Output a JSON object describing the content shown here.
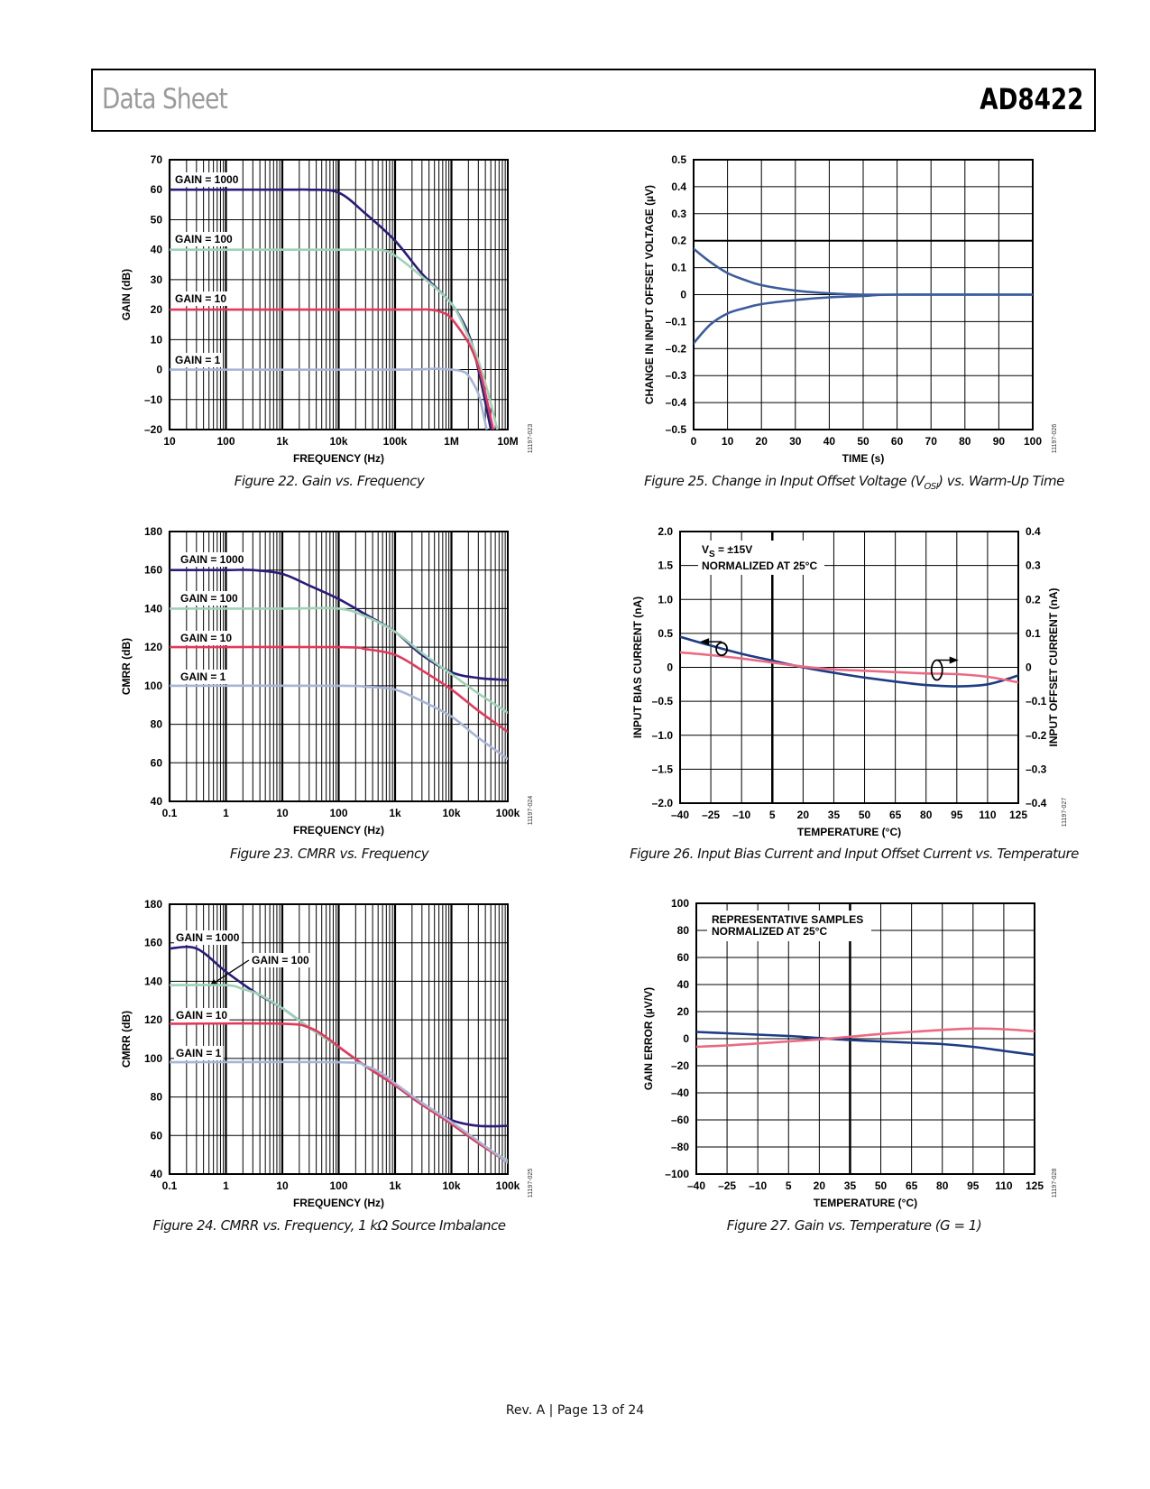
{
  "header": {
    "left": "Data Sheet",
    "right": "AD8422"
  },
  "footer": "Rev. A | Page 13 of 24",
  "colors": {
    "gain_1000": "#2b1b7a",
    "gain_100": "#9ed2b6",
    "gain_10": "#e2395a",
    "gain_1": "#a6b4d6",
    "warmup": "#3d5c9c",
    "navy": "#1d3c84",
    "pink": "#ea6a84"
  },
  "chart_data": [
    {
      "figure": "22",
      "caption": {
        "text": "Figure 22. Gain vs. Frequency"
      },
      "side_id": "11197-023",
      "type": "line",
      "xscale": "log",
      "xlim": [
        10,
        10000000
      ],
      "xticks": [
        10,
        100,
        1000,
        10000,
        100000,
        1000000,
        10000000
      ],
      "xtick_labels": [
        "10",
        "100",
        "1k",
        "10k",
        "100k",
        "1M",
        "10M"
      ],
      "ylim": [
        -20,
        70
      ],
      "yticks": [
        70,
        60,
        50,
        40,
        30,
        20,
        10,
        0,
        -10,
        -20
      ],
      "ytick_labels": [
        "70",
        "60",
        "50",
        "40",
        "30",
        "20",
        "10",
        "0",
        "–10",
        "–20"
      ],
      "xlabel": "FREQUENCY (Hz)",
      "ylabel": "GAIN (dB)",
      "grid": true,
      "series": [
        {
          "name": "GAIN = 1000",
          "color": "#2b1b7a",
          "x": [
            10,
            1000,
            3000,
            10000,
            30000,
            100000,
            300000,
            1000000,
            2000000,
            3000000,
            5000000
          ],
          "y": [
            60,
            60,
            60,
            59,
            52,
            43,
            32,
            22,
            12,
            0,
            -20
          ]
        },
        {
          "name": "GAIN = 100",
          "color": "#9ed2b6",
          "x": [
            10,
            10000,
            50000,
            100000,
            300000,
            1000000,
            2000000,
            3000000,
            4500000,
            6500000
          ],
          "y": [
            40,
            40,
            40,
            38,
            31,
            22,
            11,
            3,
            -8,
            -20
          ]
        },
        {
          "name": "GAIN = 10",
          "color": "#e2395a",
          "x": [
            10,
            100000,
            400000,
            700000,
            1000000,
            2000000,
            3000000,
            4000000,
            5500000
          ],
          "y": [
            20,
            20,
            20,
            19,
            17,
            9,
            1,
            -8,
            -20
          ]
        },
        {
          "name": "GAIN = 1",
          "color": "#a6b4d6",
          "x": [
            10,
            100000,
            500000,
            1000000,
            1500000,
            2000000,
            3000000,
            3600000,
            4200000
          ],
          "y": [
            0,
            0,
            0.3,
            0,
            -0.5,
            -2,
            -8,
            -14,
            -20
          ]
        }
      ]
    },
    {
      "figure": "25",
      "caption": {
        "text": "Figure 25. Change in Input Offset Voltage (V",
        "sub": "OSI",
        "after": ") vs. Warm-Up Time"
      },
      "side_id": "11197-026",
      "type": "line",
      "xscale": "linear",
      "xlim": [
        0,
        100
      ],
      "xticks": [
        0,
        10,
        20,
        30,
        40,
        50,
        60,
        70,
        80,
        90,
        100
      ],
      "xtick_labels": [
        "0",
        "10",
        "20",
        "30",
        "40",
        "50",
        "60",
        "70",
        "80",
        "90",
        "100"
      ],
      "ylim": [
        -0.5,
        0.5
      ],
      "yticks": [
        0.5,
        0.4,
        0.3,
        0.2,
        0.1,
        0,
        -0.1,
        -0.2,
        -0.3,
        -0.4,
        -0.5
      ],
      "ytick_labels": [
        "0.5",
        "0.4",
        "0.3",
        "0.2",
        "0.1",
        "0",
        "–0.1",
        "–0.2",
        "–0.3",
        "–0.4",
        "–0.5"
      ],
      "xlabel": "TIME (s)",
      "ylabel": "CHANGE IN INPUT OFFSET VOLTAGE (µV)",
      "grid": true,
      "series": [
        {
          "color": "#3d5c9c",
          "x": [
            0,
            5,
            10,
            15,
            20,
            30,
            40,
            50,
            60,
            100
          ],
          "y": [
            0.17,
            0.12,
            0.08,
            0.055,
            0.035,
            0.015,
            0.005,
            0,
            0,
            0
          ]
        },
        {
          "color": "#3d5c9c",
          "x": [
            0,
            5,
            10,
            15,
            20,
            30,
            40,
            50,
            60,
            100
          ],
          "y": [
            -0.18,
            -0.11,
            -0.07,
            -0.05,
            -0.035,
            -0.02,
            -0.01,
            -0.005,
            0,
            0
          ]
        }
      ]
    },
    {
      "figure": "23",
      "caption": {
        "text": "Figure 23. CMRR vs. Frequency"
      },
      "side_id": "11197-024",
      "type": "line",
      "xscale": "log",
      "xlim": [
        0.1,
        100000
      ],
      "xticks": [
        0.1,
        1,
        10,
        100,
        1000,
        10000,
        100000
      ],
      "xtick_labels": [
        "0.1",
        "1",
        "10",
        "100",
        "1k",
        "10k",
        "100k"
      ],
      "ylim": [
        40,
        180
      ],
      "yticks": [
        180,
        160,
        140,
        120,
        100,
        80,
        60,
        40
      ],
      "ytick_labels": [
        "180",
        "160",
        "140",
        "120",
        "100",
        "80",
        "60",
        "40"
      ],
      "xlabel": "FREQUENCY (Hz)",
      "ylabel": "CMRR (dB)",
      "grid": true,
      "series": [
        {
          "name": "GAIN = 1000",
          "color": "#2b1b7a",
          "x": [
            0.1,
            1,
            3,
            10,
            30,
            100,
            300,
            1000,
            3000,
            10000,
            30000,
            100000
          ],
          "y": [
            160,
            160,
            160,
            158,
            152,
            145,
            137,
            128,
            116,
            107,
            104,
            103
          ]
        },
        {
          "name": "GAIN = 100",
          "color": "#9ed2b6",
          "x": [
            0.1,
            10,
            100,
            300,
            1000,
            3000,
            10000,
            30000,
            100000
          ],
          "y": [
            140,
            140,
            140,
            136,
            128,
            117,
            106,
            96,
            86
          ]
        },
        {
          "name": "GAIN = 10",
          "color": "#e2395a",
          "x": [
            0.1,
            100,
            300,
            1000,
            3000,
            10000,
            30000,
            100000
          ],
          "y": [
            120,
            120,
            119,
            116,
            108,
            98,
            87,
            76
          ]
        },
        {
          "name": "GAIN = 1",
          "color": "#a6b4d6",
          "x": [
            0.1,
            100,
            300,
            1000,
            3000,
            10000,
            30000,
            100000
          ],
          "y": [
            100,
            100,
            99.5,
            98,
            92,
            84,
            73,
            62
          ]
        }
      ]
    },
    {
      "figure": "26",
      "caption": {
        "text": "Figure 26. Input Bias Current and Input Offset Current vs. Temperature"
      },
      "side_id": "11197-027",
      "type": "line",
      "xscale": "linear",
      "xlim": [
        -40,
        125
      ],
      "xticks": [
        -40,
        -25,
        -10,
        5,
        20,
        35,
        50,
        65,
        80,
        95,
        110,
        125
      ],
      "xtick_labels": [
        "–40",
        "–25",
        "–10",
        "5",
        "20",
        "35",
        "50",
        "65",
        "80",
        "95",
        "110",
        "125"
      ],
      "ylim": [
        -2.0,
        2.0
      ],
      "yticks": [
        2.0,
        1.5,
        1.0,
        0.5,
        0,
        -0.5,
        -1.0,
        -1.5,
        -2.0
      ],
      "ytick_labels": [
        "2.0",
        "1.5",
        "1.0",
        "0.5",
        "0",
        "–0.5",
        "–1.0",
        "–1.5",
        "–2.0"
      ],
      "y2lim": [
        -0.4,
        0.4
      ],
      "y2tick_labels": [
        "0.4",
        "0.3",
        "0.2",
        "0.1",
        "0",
        "–0.1",
        "–0.2",
        "–0.3",
        "–0.4"
      ],
      "xlabel": "TEMPERATURE (°C)",
      "ylabel": "INPUT BIAS CURRENT (nA)",
      "y2label": "INPUT OFFSET CURRENT (nA)",
      "annotation": {
        "v": "V",
        "sub": "S",
        "rest": " = ±15V",
        "line2": "NORMALIZED AT 25°C"
      },
      "grid": true,
      "series": [
        {
          "axis": "left",
          "color": "#1d3c84",
          "x": [
            -40,
            -25,
            -10,
            5,
            20,
            35,
            50,
            65,
            80,
            95,
            110,
            125
          ],
          "y": [
            0.45,
            0.32,
            0.2,
            0.1,
            0.0,
            -0.08,
            -0.15,
            -0.21,
            -0.26,
            -0.28,
            -0.25,
            -0.12
          ]
        },
        {
          "axis": "right",
          "color": "#ea6a84",
          "x": [
            -40,
            -25,
            -10,
            5,
            20,
            35,
            50,
            65,
            80,
            95,
            110,
            125
          ],
          "y": [
            0.044,
            0.036,
            0.026,
            0.014,
            0.002,
            -0.006,
            -0.01,
            -0.014,
            -0.018,
            -0.02,
            -0.028,
            -0.044
          ]
        }
      ]
    },
    {
      "figure": "24",
      "caption": {
        "text": "Figure 24. CMRR vs. Frequency, 1 kΩ Source Imbalance"
      },
      "side_id": "11197-025",
      "type": "line",
      "xscale": "log",
      "xlim": [
        0.1,
        100000
      ],
      "xticks": [
        0.1,
        1,
        10,
        100,
        1000,
        10000,
        100000
      ],
      "xtick_labels": [
        "0.1",
        "1",
        "10",
        "100",
        "1k",
        "10k",
        "100k"
      ],
      "ylim": [
        40,
        180
      ],
      "yticks": [
        180,
        160,
        140,
        120,
        100,
        80,
        60,
        40
      ],
      "ytick_labels": [
        "180",
        "160",
        "140",
        "120",
        "100",
        "80",
        "60",
        "40"
      ],
      "xlabel": "FREQUENCY (Hz)",
      "ylabel": "CMRR (dB)",
      "grid": true,
      "series": [
        {
          "name": "GAIN = 1000",
          "color": "#2b1b7a",
          "x": [
            0.1,
            0.3,
            1,
            3,
            10,
            30,
            100,
            300,
            1000,
            3000,
            10000,
            30000,
            100000
          ],
          "y": [
            157,
            157,
            145,
            135,
            126,
            116,
            106,
            96,
            86,
            76,
            68,
            65,
            65
          ]
        },
        {
          "name": "GAIN = 100",
          "color": "#9ed2b6",
          "x": [
            0.1,
            1,
            2,
            4,
            10,
            30,
            100,
            300,
            1000,
            3000,
            10000,
            30000,
            100000
          ],
          "y": [
            138,
            138,
            136,
            133,
            126,
            116,
            106,
            96,
            86,
            76,
            66,
            56,
            47
          ]
        },
        {
          "name": "GAIN = 10",
          "color": "#e2395a",
          "x": [
            0.1,
            10,
            30,
            60,
            100,
            300,
            1000,
            3000,
            10000,
            30000,
            100000
          ],
          "y": [
            118,
            118,
            116,
            111,
            106,
            96,
            86,
            76,
            66,
            56,
            46
          ]
        },
        {
          "name": "GAIN = 1",
          "color": "#a6b4d6",
          "x": [
            0.1,
            100,
            300,
            600,
            1000,
            3000,
            10000,
            30000,
            100000
          ],
          "y": [
            98,
            98,
            96,
            92,
            87,
            77,
            67,
            57,
            46
          ]
        }
      ]
    },
    {
      "figure": "27",
      "caption": {
        "text": "Figure 27. Gain vs. Temperature (G = 1)"
      },
      "side_id": "11197-028",
      "type": "line",
      "xscale": "linear",
      "xlim": [
        -40,
        125
      ],
      "xticks": [
        -40,
        -25,
        -10,
        5,
        20,
        35,
        50,
        65,
        80,
        95,
        110,
        125
      ],
      "xtick_labels": [
        "–40",
        "–25",
        "–10",
        "5",
        "20",
        "35",
        "50",
        "65",
        "80",
        "95",
        "110",
        "125"
      ],
      "ylim": [
        -100,
        100
      ],
      "yticks": [
        100,
        80,
        60,
        40,
        20,
        0,
        -20,
        -40,
        -60,
        -80,
        -100
      ],
      "ytick_labels": [
        "100",
        "80",
        "60",
        "40",
        "20",
        "0",
        "–20",
        "–40",
        "–60",
        "–80",
        "–100"
      ],
      "xlabel": "TEMPERATURE (°C)",
      "ylabel": "GAIN ERROR (µV/V)",
      "annotation": {
        "line1": "REPRESENTATIVE SAMPLES",
        "line2": "NORMALIZED AT 25°C"
      },
      "grid": true,
      "series": [
        {
          "color": "#1d3c84",
          "x": [
            -40,
            -25,
            -10,
            5,
            20,
            35,
            50,
            65,
            80,
            95,
            110,
            125
          ],
          "y": [
            5,
            4,
            3,
            2,
            0.5,
            -1,
            -2,
            -3,
            -4,
            -6,
            -9,
            -12
          ]
        },
        {
          "color": "#ea6a84",
          "x": [
            -40,
            -25,
            -10,
            5,
            20,
            35,
            50,
            65,
            80,
            95,
            110,
            125
          ],
          "y": [
            -6,
            -5,
            -3.5,
            -2,
            -0.5,
            1.5,
            3.5,
            5,
            6.5,
            7.5,
            7,
            5.5
          ]
        }
      ]
    }
  ]
}
